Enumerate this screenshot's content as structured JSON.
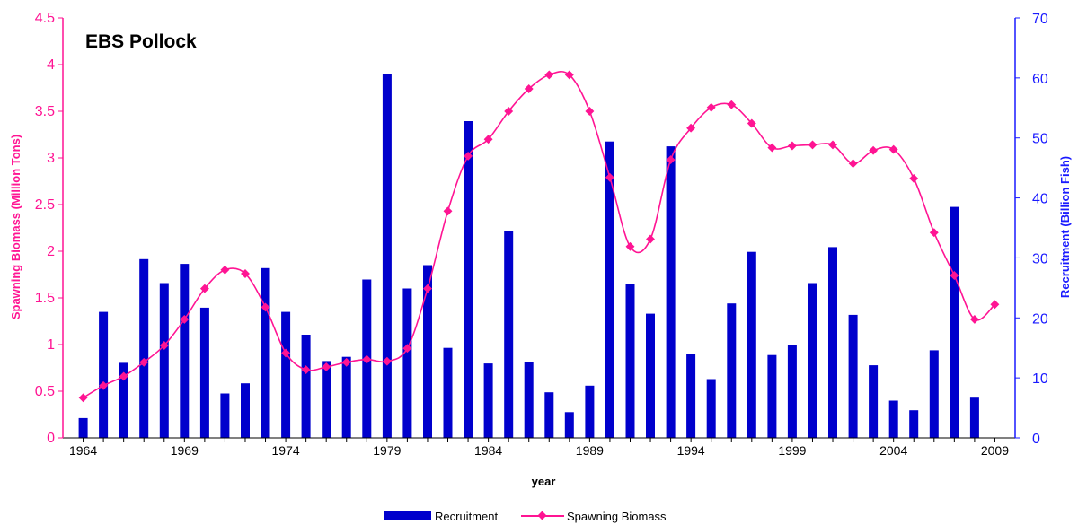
{
  "chart_data": {
    "type": "bar+line",
    "title": "EBS Pollock",
    "xlabel": "year",
    "ylabel_left": "Spawning Biomass (Million Tons)",
    "ylabel_right": "Recruitment (Billion Fish)",
    "xlim": [
      1963,
      2010
    ],
    "x_ticks": [
      "1964",
      "1969",
      "1974",
      "1979",
      "1984",
      "1989",
      "1994",
      "1999",
      "2004",
      "2009"
    ],
    "ylim_left": [
      0,
      4.5
    ],
    "y_ticks_left": [
      "0",
      "0.5",
      "1",
      "1.5",
      "2",
      "2.5",
      "3",
      "3.5",
      "4",
      "4.5"
    ],
    "ylim_right": [
      0,
      70
    ],
    "y_ticks_right": [
      "0",
      "10",
      "20",
      "30",
      "40",
      "50",
      "60",
      "70"
    ],
    "grid": false,
    "legend_position": "bottom-center",
    "colors": {
      "recruitment": "#0000cc",
      "spawning_biomass": "#ff1493",
      "left_axis": "#ff1493",
      "right_axis": "#1a1aff"
    },
    "series": [
      {
        "name": "Recruitment",
        "type": "bar",
        "axis": "right",
        "x": [
          1964,
          1965,
          1966,
          1967,
          1968,
          1969,
          1970,
          1971,
          1972,
          1973,
          1974,
          1975,
          1976,
          1977,
          1978,
          1979,
          1980,
          1981,
          1982,
          1983,
          1984,
          1985,
          1986,
          1987,
          1988,
          1989,
          1990,
          1991,
          1992,
          1993,
          1994,
          1995,
          1996,
          1997,
          1998,
          1999,
          2000,
          2001,
          2002,
          2003,
          2004,
          2005,
          2006,
          2007,
          2008
        ],
        "values": [
          3.3,
          21,
          12.5,
          29.8,
          25.8,
          29,
          21.7,
          7.4,
          9.1,
          28.3,
          21,
          17.2,
          12.8,
          13.5,
          26.4,
          60.6,
          24.9,
          28.8,
          15,
          52.8,
          12.4,
          34.4,
          12.6,
          7.6,
          4.3,
          8.7,
          49.4,
          25.6,
          20.7,
          48.6,
          14,
          9.8,
          22.4,
          31,
          13.8,
          15.5,
          25.8,
          31.8,
          20.5,
          12.1,
          6.2,
          4.6,
          14.6,
          38.5,
          6.7
        ]
      },
      {
        "name": "Spawning Biomass",
        "type": "line",
        "axis": "left",
        "x": [
          1964,
          1965,
          1966,
          1967,
          1968,
          1969,
          1970,
          1971,
          1972,
          1973,
          1974,
          1975,
          1976,
          1977,
          1978,
          1979,
          1980,
          1981,
          1982,
          1983,
          1984,
          1985,
          1986,
          1987,
          1988,
          1989,
          1990,
          1991,
          1992,
          1993,
          1994,
          1995,
          1996,
          1997,
          1998,
          1999,
          2000,
          2001,
          2002,
          2003,
          2004,
          2005,
          2006,
          2007,
          2008,
          2009
        ],
        "values": [
          0.43,
          0.56,
          0.66,
          0.81,
          0.99,
          1.27,
          1.6,
          1.8,
          1.76,
          1.4,
          0.91,
          0.73,
          0.76,
          0.81,
          0.84,
          0.82,
          0.96,
          1.6,
          2.43,
          3.02,
          3.2,
          3.5,
          3.74,
          3.89,
          3.89,
          3.5,
          2.79,
          2.05,
          2.13,
          2.98,
          3.32,
          3.54,
          3.57,
          3.37,
          3.11,
          3.13,
          3.14,
          3.14,
          2.94,
          3.08,
          3.09,
          2.78,
          2.2,
          1.74,
          1.27,
          1.43
        ]
      }
    ]
  }
}
